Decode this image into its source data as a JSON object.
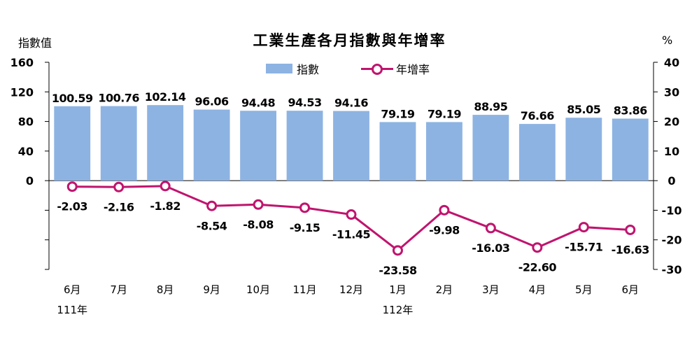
{
  "chart_data": {
    "type": "bar+line",
    "title": "工業生產各月指數與年增率",
    "y_left_label": "指數值",
    "y_right_label": "%",
    "categories": [
      "6月",
      "7月",
      "8月",
      "9月",
      "10月",
      "11月",
      "12月",
      "1月",
      "2月",
      "3月",
      "4月",
      "5月",
      "6月"
    ],
    "year_labels": [
      {
        "label": "111年",
        "category_index": 0
      },
      {
        "label": "112年",
        "category_index": 7
      }
    ],
    "left_ticks": [
      "160",
      "120",
      "80",
      "40",
      "0"
    ],
    "right_ticks": [
      "40",
      "30",
      "20",
      "10",
      "0",
      "-10",
      "-20",
      "-30"
    ],
    "y_left_range": [
      -120,
      160
    ],
    "y_right_range": [
      -30,
      40
    ],
    "series": [
      {
        "name": "指數",
        "type": "bar",
        "axis": "left",
        "color": "#8db3e2",
        "values": [
          100.59,
          100.76,
          102.14,
          96.06,
          94.48,
          94.53,
          94.16,
          79.19,
          79.19,
          88.95,
          76.66,
          85.05,
          83.86
        ],
        "labels": [
          "100.59",
          "100.76",
          "102.14",
          "96.06",
          "94.48",
          "94.53",
          "94.16",
          "79.19",
          "79.19",
          "88.95",
          "76.66",
          "85.05",
          "83.86"
        ]
      },
      {
        "name": "年增率",
        "type": "line",
        "axis": "right",
        "color": "#c0146e",
        "values": [
          -2.03,
          -2.16,
          -1.82,
          -8.54,
          -8.08,
          -9.15,
          -11.45,
          -23.58,
          -9.98,
          -16.03,
          -22.6,
          -15.71,
          -16.63
        ],
        "labels": [
          "-2.03",
          "-2.16",
          "-1.82",
          "-8.54",
          "-8.08",
          "-9.15",
          "-11.45",
          "-23.58",
          "-9.98",
          "-16.03",
          "-22.60",
          "-15.71",
          "-16.63"
        ]
      }
    ],
    "legend_position": "top-center"
  }
}
